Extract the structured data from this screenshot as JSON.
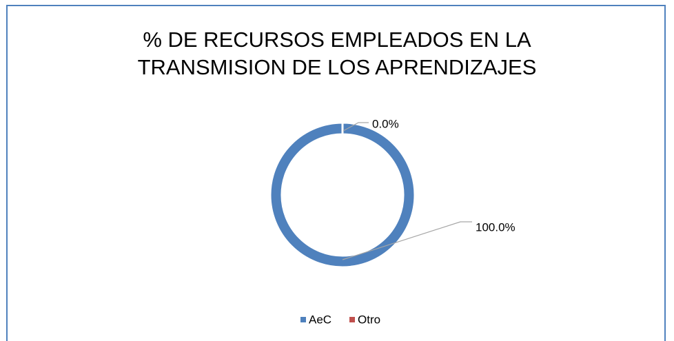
{
  "chart_data": {
    "type": "donut",
    "title": "% DE RECURSOS EMPLEADOS EN LA TRANSMISION DE LOS APRENDIZAJES",
    "categories": [
      "AeC",
      "Otro"
    ],
    "values": [
      100,
      0
    ],
    "value_labels": [
      "100.0%",
      "0.0%"
    ],
    "colors": [
      "#4f81bd",
      "#c0504d"
    ],
    "legend": "bottom"
  }
}
